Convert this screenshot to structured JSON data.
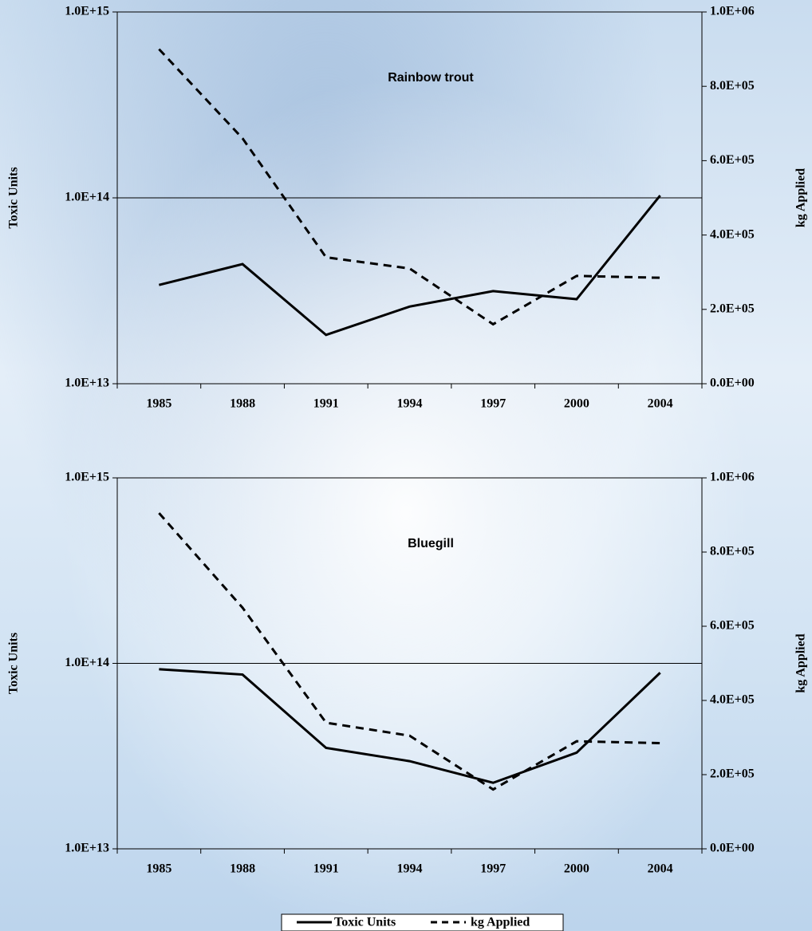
{
  "chart_data": [
    {
      "type": "line",
      "title": "Rainbow trout",
      "y_label": "Toxic Units",
      "y2_label": "kg Applied",
      "categories": [
        "1985",
        "1988",
        "1991",
        "1994",
        "1997",
        "2000",
        "2004"
      ],
      "yscale": "log",
      "ylim": [
        10000000000000.0,
        1000000000000000.0
      ],
      "yticks": [
        {
          "value": 10000000000000.0,
          "label": "1.0E+13"
        },
        {
          "value": 100000000000000.0,
          "label": "1.0E+14"
        },
        {
          "value": 1000000000000000.0,
          "label": "1.0E+15"
        }
      ],
      "y2lim": [
        0,
        1000000
      ],
      "y2ticks": [
        {
          "value": 0,
          "label": "0.0E+00"
        },
        {
          "value": 200000,
          "label": "2.0E+05"
        },
        {
          "value": 400000,
          "label": "4.0E+05"
        },
        {
          "value": 600000,
          "label": "6.0E+05"
        },
        {
          "value": 800000,
          "label": "8.0E+05"
        },
        {
          "value": 1000000,
          "label": "1.0E+06"
        }
      ],
      "grid": true,
      "series": [
        {
          "name": "Toxic Units",
          "color": "#000000",
          "linestyle": "solid",
          "values": [
            34000000000000.0,
            44000000000000.0,
            18300000000000.0,
            26000000000000.0,
            31500000000000.0,
            28500000000000.0,
            103000000000000.0
          ]
        },
        {
          "name": "kg Applied",
          "color": "#000000",
          "linestyle": "dashed",
          "axis": "y2",
          "values": [
            900000,
            660000,
            340000,
            310000,
            160000,
            290000,
            285000
          ]
        }
      ]
    },
    {
      "type": "line",
      "title": "Bluegill",
      "y_label": "Toxic Units",
      "y2_label": "kg Applied",
      "categories": [
        "1985",
        "1988",
        "1991",
        "1994",
        "1997",
        "2000",
        "2004"
      ],
      "yscale": "log",
      "ylim": [
        10000000000000.0,
        1000000000000000.0
      ],
      "yticks": [
        {
          "value": 10000000000000.0,
          "label": "1.0E+13"
        },
        {
          "value": 100000000000000.0,
          "label": "1.0E+14"
        },
        {
          "value": 1000000000000000.0,
          "label": "1.0E+15"
        }
      ],
      "y2lim": [
        0,
        1000000
      ],
      "y2ticks": [
        {
          "value": 0,
          "label": "0.0E+00"
        },
        {
          "value": 200000,
          "label": "2.0E+05"
        },
        {
          "value": 400000,
          "label": "4.0E+05"
        },
        {
          "value": 600000,
          "label": "6.0E+05"
        },
        {
          "value": 800000,
          "label": "8.0E+05"
        },
        {
          "value": 1000000,
          "label": "1.0E+06"
        }
      ],
      "grid": true,
      "series": [
        {
          "name": "Toxic Units",
          "color": "#000000",
          "linestyle": "solid",
          "values": [
            93000000000000.0,
            87000000000000.0,
            35000000000000.0,
            29700000000000.0,
            22700000000000.0,
            33000000000000.0,
            89000000000000.0
          ]
        },
        {
          "name": "kg Applied",
          "color": "#000000",
          "linestyle": "dashed",
          "axis": "y2",
          "values": [
            905000,
            650000,
            340000,
            305000,
            160000,
            290000,
            285000
          ]
        }
      ]
    }
  ]
}
